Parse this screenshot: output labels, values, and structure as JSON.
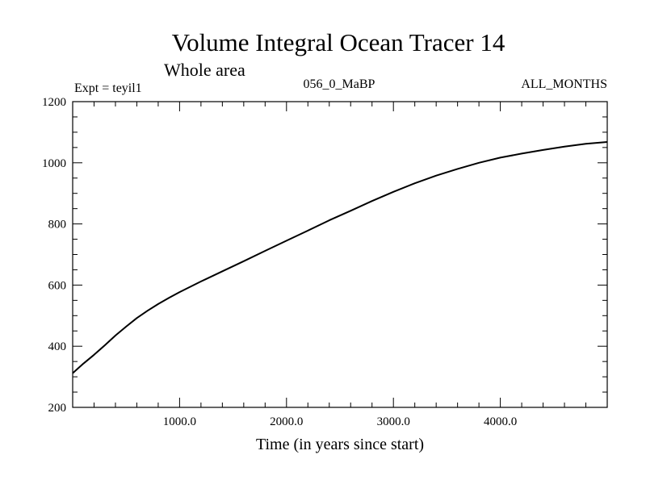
{
  "chart_data": {
    "type": "line",
    "title": "Volume Integral Ocean Tracer 14",
    "subtitle": "Whole area",
    "experiment_label": "Expt = teyil1",
    "period_label": "056_0_MaBP",
    "months_label": "ALL_MONTHS",
    "xlabel": "Time (in years since start)",
    "ylabel": "",
    "xlim": [
      0,
      5000
    ],
    "ylim": [
      200,
      1200
    ],
    "x_ticks": [
      {
        "value": 1000,
        "label": "1000.0"
      },
      {
        "value": 2000,
        "label": "2000.0"
      },
      {
        "value": 3000,
        "label": "3000.0"
      },
      {
        "value": 4000,
        "label": "4000.0"
      }
    ],
    "y_ticks": [
      {
        "value": 200,
        "label": "200"
      },
      {
        "value": 400,
        "label": "400"
      },
      {
        "value": 600,
        "label": "600"
      },
      {
        "value": 800,
        "label": "800"
      },
      {
        "value": 1000,
        "label": "1000"
      },
      {
        "value": 1200,
        "label": "1200"
      }
    ],
    "grid": false,
    "series": [
      {
        "color": "#000000",
        "x": [
          0,
          100,
          200,
          300,
          400,
          500,
          600,
          700,
          800,
          900,
          1000,
          1200,
          1400,
          1600,
          1800,
          2000,
          2200,
          2400,
          2600,
          2800,
          3000,
          3200,
          3400,
          3600,
          3800,
          4000,
          4200,
          4400,
          4600,
          4800,
          5000
        ],
        "y": [
          312,
          343,
          372,
          403,
          435,
          464,
          492,
          516,
          538,
          558,
          577,
          612,
          645,
          678,
          712,
          745,
          778,
          812,
          843,
          875,
          905,
          933,
          958,
          980,
          1000,
          1017,
          1030,
          1042,
          1053,
          1062,
          1068
        ]
      }
    ]
  }
}
